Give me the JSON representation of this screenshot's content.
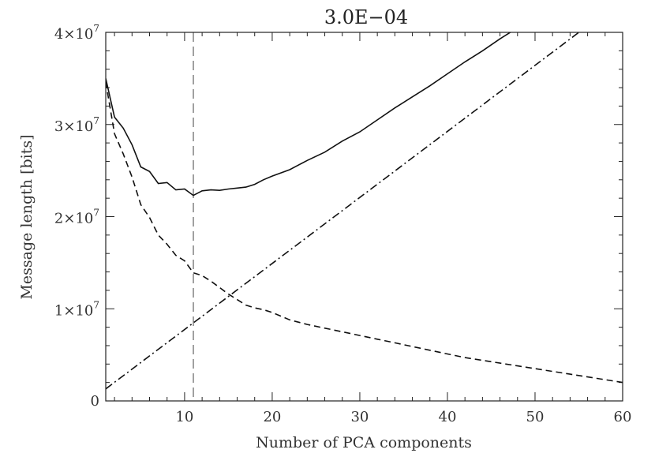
{
  "chart_data": {
    "type": "line",
    "title": "3.0E−04",
    "xlabel": "Number of PCA components",
    "ylabel": "Message length [bits]",
    "xlim": [
      1,
      60
    ],
    "ylim": [
      0,
      40000000
    ],
    "x_ticks": [
      {
        "value": 10,
        "label": "10"
      },
      {
        "value": 20,
        "label": "20"
      },
      {
        "value": 30,
        "label": "30"
      },
      {
        "value": 40,
        "label": "40"
      },
      {
        "value": 50,
        "label": "50"
      },
      {
        "value": 60,
        "label": "60"
      }
    ],
    "y_ticks": [
      {
        "value": 0,
        "base": "0",
        "exp": ""
      },
      {
        "value": 10000000,
        "base": "1×10",
        "exp": "7"
      },
      {
        "value": 20000000,
        "base": "2×10",
        "exp": "7"
      },
      {
        "value": 30000000,
        "base": "3×10",
        "exp": "7"
      },
      {
        "value": 40000000,
        "base": "4×10",
        "exp": "7"
      }
    ],
    "vertical_marker_x": 11,
    "series": [
      {
        "style": "solid",
        "x": [
          1,
          2,
          3,
          4,
          5,
          6,
          7,
          8,
          9,
          10,
          11,
          12,
          13,
          14,
          15,
          16,
          17,
          18,
          19,
          20,
          22,
          24,
          26,
          28,
          30,
          32,
          34,
          36,
          38,
          40,
          42,
          44,
          46,
          48,
          50
        ],
        "y": [
          35000000,
          30800000,
          29600000,
          27800000,
          25400000,
          24900000,
          23600000,
          23700000,
          22900000,
          23000000,
          22300000,
          22800000,
          22900000,
          22850000,
          23000000,
          23100000,
          23200000,
          23500000,
          24000000,
          24400000,
          25100000,
          26100000,
          27000000,
          28200000,
          29200000,
          30500000,
          31800000,
          33000000,
          34200000,
          35500000,
          36800000,
          38000000,
          39300000,
          40500000,
          41500000
        ]
      },
      {
        "style": "dashed",
        "x": [
          1,
          2,
          3,
          4,
          5,
          6,
          7,
          8,
          9,
          10,
          11,
          12,
          13,
          14,
          15,
          16,
          17,
          18,
          19,
          20,
          22,
          24,
          26,
          28,
          30,
          32,
          34,
          36,
          38,
          40,
          42,
          44,
          46,
          48,
          50,
          52,
          54,
          56,
          58,
          60
        ],
        "y": [
          34600000,
          29000000,
          26800000,
          24300000,
          21300000,
          19900000,
          18000000,
          17000000,
          15800000,
          15200000,
          13900000,
          13600000,
          13000000,
          12300000,
          11600000,
          11000000,
          10400000,
          10100000,
          9900000,
          9600000,
          8800000,
          8300000,
          7900000,
          7500000,
          7100000,
          6700000,
          6300000,
          5900000,
          5500000,
          5100000,
          4700000,
          4400000,
          4100000,
          3800000,
          3500000,
          3200000,
          2900000,
          2600000,
          2300000,
          2000000
        ]
      },
      {
        "style": "dashdot",
        "x": [
          1,
          55
        ],
        "y": [
          1300000,
          40000000
        ]
      }
    ]
  }
}
